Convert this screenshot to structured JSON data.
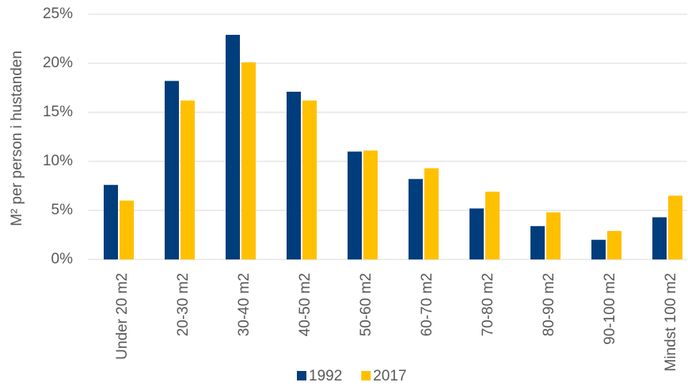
{
  "chart_data": {
    "type": "bar",
    "y_label": "M² per person i hustanden",
    "categories": [
      "Under 20 m2",
      "20-30  m2",
      "30-40  m2",
      "40-50 m2",
      "50-60 m2",
      "60-70 m2",
      "70-80 m2",
      "80-90 m2",
      "90-100 m2",
      "Mindst 100 m2"
    ],
    "series": [
      {
        "name": "1992",
        "color": "#003d7c",
        "values": [
          7.6,
          18.2,
          22.9,
          17.1,
          11.0,
          8.2,
          5.2,
          3.4,
          2.0,
          4.3
        ]
      },
      {
        "name": "2017",
        "color": "#ffc000",
        "values": [
          6.0,
          16.2,
          20.1,
          16.2,
          11.1,
          9.3,
          6.9,
          4.8,
          2.9,
          6.5
        ]
      }
    ],
    "ylim": [
      0,
      25
    ],
    "yticks": [
      {
        "value": 0,
        "label": "0%"
      },
      {
        "value": 5,
        "label": "5%"
      },
      {
        "value": 10,
        "label": "10%"
      },
      {
        "value": 15,
        "label": "15%"
      },
      {
        "value": 20,
        "label": "20%"
      },
      {
        "value": 25,
        "label": "25%"
      }
    ],
    "grid": true
  }
}
